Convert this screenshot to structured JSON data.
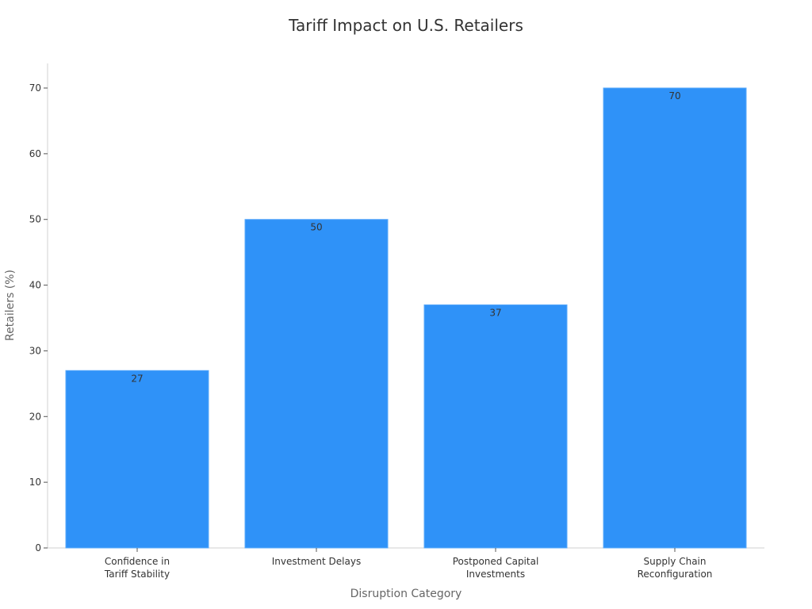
{
  "chart_data": {
    "type": "bar",
    "title": "Tariff Impact on U.S. Retailers",
    "xlabel": "Disruption Category",
    "ylabel": "Retailers (%)",
    "categories": [
      [
        "Confidence in",
        "Tariff Stability"
      ],
      [
        "Investment Delays"
      ],
      [
        "Postponed Capital",
        "Investments"
      ],
      [
        "Supply Chain",
        "Reconfiguration"
      ]
    ],
    "values": [
      27,
      50,
      37,
      70
    ],
    "ylim": [
      0,
      73.5
    ],
    "yticks": [
      0,
      10,
      20,
      30,
      40,
      50,
      60,
      70
    ],
    "bar_color": "#2f92f8",
    "grid": false,
    "legend": null
  }
}
